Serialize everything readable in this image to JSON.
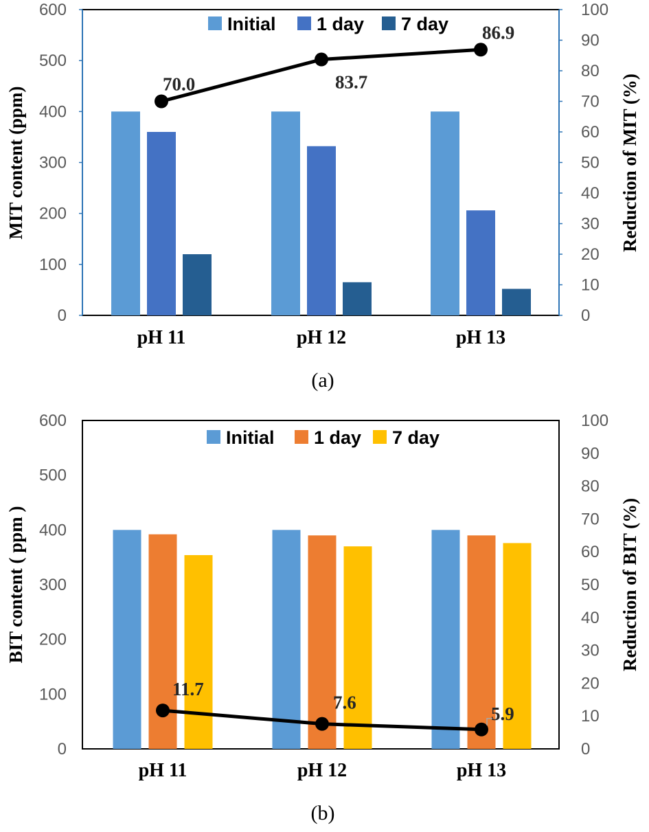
{
  "chart_data": [
    {
      "type": "bar",
      "categories": [
        "pH 11",
        "pH 12",
        "pH 13"
      ],
      "series": [
        {
          "name": "Initial",
          "values": [
            400,
            400,
            400
          ],
          "color": "#5b9bd5"
        },
        {
          "name": "1 day",
          "values": [
            360,
            332,
            206
          ],
          "color": "#4472c4"
        },
        {
          "name": "7 day",
          "values": [
            120,
            65,
            52
          ],
          "color": "#255e91"
        }
      ],
      "line_series": {
        "values": [
          70.0,
          83.7,
          86.9
        ],
        "labels": [
          "70.0",
          "83.7",
          "86.9"
        ],
        "axis": "right",
        "color": "#000000"
      },
      "ylabel": "MIT content (ppm)",
      "ylabel_right": "Reduction of MIT (%)",
      "ylim": [
        0,
        600
      ],
      "ylim_right": [
        0,
        100
      ],
      "yticks": [
        "0",
        "100",
        "200",
        "300",
        "400",
        "500",
        "600"
      ],
      "yticks_right": [
        "0",
        "10",
        "20",
        "30",
        "40",
        "50",
        "60",
        "70",
        "80",
        "90",
        "100"
      ],
      "legend": "top",
      "frame_color": "#000000",
      "axis_color": "#2e75b6",
      "caption": "(a)"
    },
    {
      "type": "bar",
      "categories": [
        "pH 11",
        "pH 12",
        "pH 13"
      ],
      "series": [
        {
          "name": "Initial",
          "values": [
            400,
            400,
            400
          ],
          "color": "#5b9bd5"
        },
        {
          "name": "1 day",
          "values": [
            392,
            390,
            390
          ],
          "color": "#ed7d31"
        },
        {
          "name": "7 day",
          "values": [
            354,
            370,
            376
          ],
          "color": "#ffc000"
        }
      ],
      "line_series": {
        "values": [
          11.7,
          7.6,
          5.9
        ],
        "labels": [
          "11.7",
          "7.6",
          "5.9"
        ],
        "axis": "right",
        "color": "#000000"
      },
      "ylabel": "BIT content ( ppm )",
      "ylabel_right": "Reduction of BIT (%)",
      "ylim": [
        0,
        600
      ],
      "ylim_right": [
        0,
        100
      ],
      "yticks": [
        "0",
        "100",
        "200",
        "300",
        "400",
        "500",
        "600"
      ],
      "yticks_right": [
        "0",
        "10",
        "20",
        "30",
        "40",
        "50",
        "60",
        "70",
        "80",
        "90",
        "100"
      ],
      "legend": "top",
      "frame_color": "#000000",
      "axis_color": "#000000",
      "caption": "(b)"
    }
  ]
}
